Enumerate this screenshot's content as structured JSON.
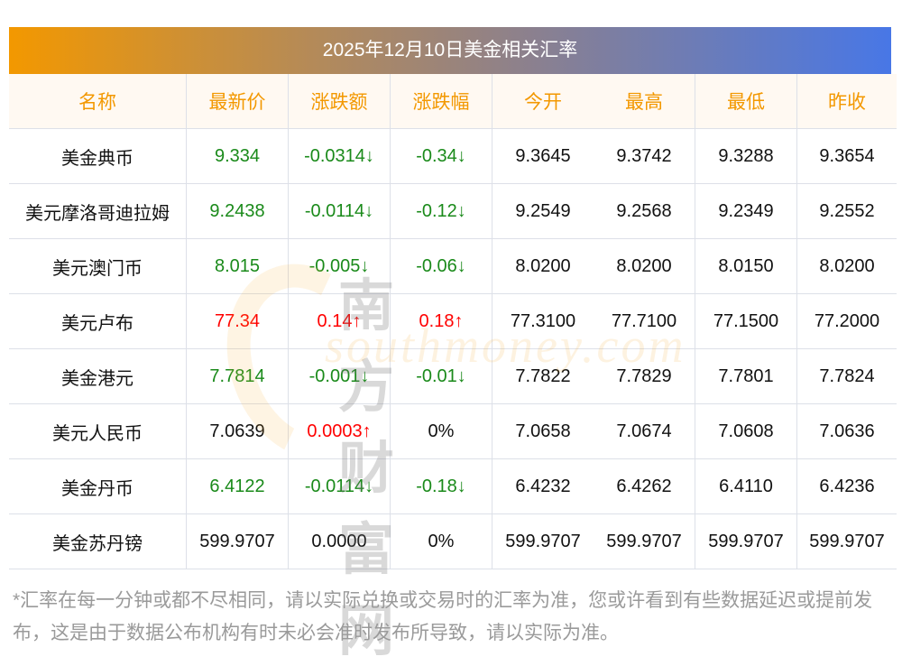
{
  "title": "2025年12月10日美金相关汇率",
  "columns": [
    "名称",
    "最新价",
    "涨跌额",
    "涨跌幅",
    "今开",
    "最高",
    "最低",
    "昨收"
  ],
  "rows": [
    {
      "name": "美金典币",
      "latest": "9.334",
      "change": "-0.0314↓",
      "pct": "-0.34↓",
      "open": "9.3645",
      "high": "9.3742",
      "low": "9.3288",
      "prev": "9.3654",
      "dir": "down",
      "pct_dir": "down"
    },
    {
      "name": "美元摩洛哥迪拉姆",
      "latest": "9.2438",
      "change": "-0.0114↓",
      "pct": "-0.12↓",
      "open": "9.2549",
      "high": "9.2568",
      "low": "9.2349",
      "prev": "9.2552",
      "dir": "down",
      "pct_dir": "down"
    },
    {
      "name": "美元澳门币",
      "latest": "8.015",
      "change": "-0.005↓",
      "pct": "-0.06↓",
      "open": "8.0200",
      "high": "8.0200",
      "low": "8.0150",
      "prev": "8.0200",
      "dir": "down",
      "pct_dir": "down"
    },
    {
      "name": "美元卢布",
      "latest": "77.34",
      "change": "0.14↑",
      "pct": "0.18↑",
      "open": "77.3100",
      "high": "77.7100",
      "low": "77.1500",
      "prev": "77.2000",
      "dir": "up",
      "pct_dir": "up"
    },
    {
      "name": "美金港元",
      "latest": "7.7814",
      "change": "-0.001↓",
      "pct": "-0.01↓",
      "open": "7.7822",
      "high": "7.7829",
      "low": "7.7801",
      "prev": "7.7824",
      "dir": "down",
      "pct_dir": "down"
    },
    {
      "name": "美元人民币",
      "latest": "7.0639",
      "change": "0.0003↑",
      "pct": "0%",
      "open": "7.0658",
      "high": "7.0674",
      "low": "7.0608",
      "prev": "7.0636",
      "dir": "flat",
      "change_dir": "up",
      "pct_dir": "flat"
    },
    {
      "name": "美金丹币",
      "latest": "6.4122",
      "change": "-0.0114↓",
      "pct": "-0.18↓",
      "open": "6.4232",
      "high": "6.4262",
      "low": "6.4110",
      "prev": "6.4236",
      "dir": "down",
      "pct_dir": "down"
    },
    {
      "name": "美金苏丹镑",
      "latest": "599.9707",
      "change": "0.0000",
      "pct": "0%",
      "open": "599.9707",
      "high": "599.9707",
      "low": "599.9707",
      "prev": "599.9707",
      "dir": "flat",
      "pct_dir": "flat"
    }
  ],
  "watermark": {
    "cn": "南方财富网",
    "en": "southmoney.com"
  },
  "footer": "*汇率在每一分钟或都不尽相同，请以实际兑换或交易时的汇率为准，您或许看到有些数据延迟或提前发布，这是由于数据公布机构有时未必会准时发布所导致，请以实际为准。",
  "colors": {
    "up": "#ff0000",
    "down": "#1a8a1a",
    "header_text": "#f39800"
  }
}
